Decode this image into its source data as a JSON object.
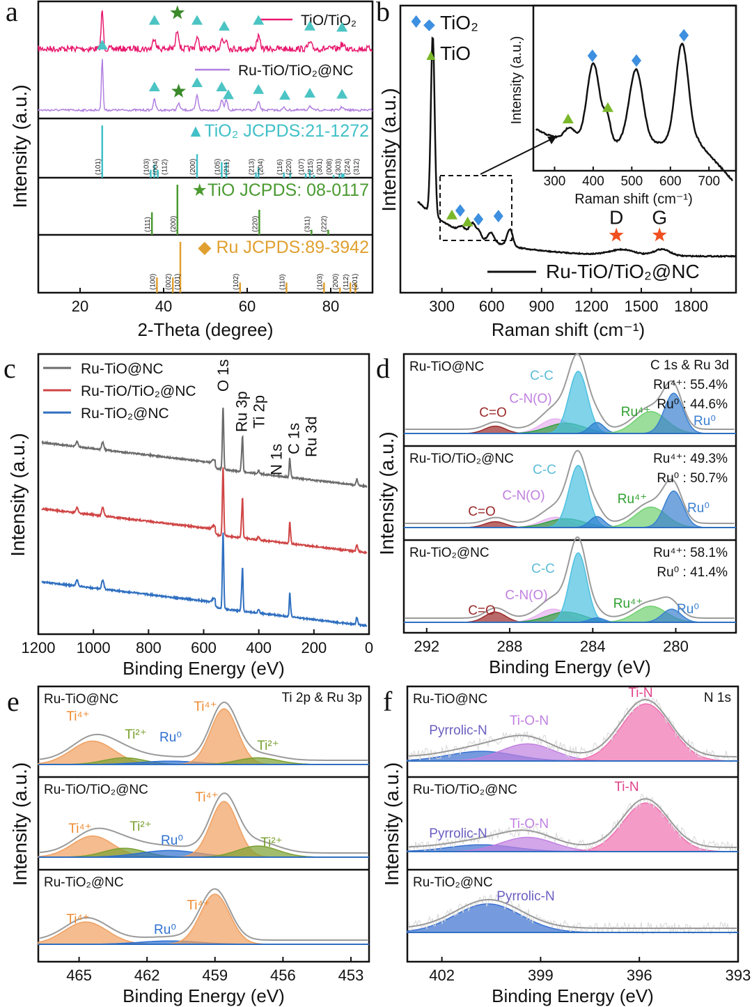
{
  "chart_data": [
    {
      "panel": "a",
      "type": "line",
      "xlabel": "2-Theta (degree)",
      "ylabel": "Intensity (a.u.)",
      "xlim": [
        10,
        90
      ],
      "xticks": [
        20,
        40,
        60,
        80
      ],
      "series": [
        {
          "name": "TiO/TiO₂",
          "color": "#e8196e",
          "peaks": [
            [
              25.3,
              1,
              0.25
            ],
            [
              37.8,
              0.3,
              0.35
            ],
            [
              43.3,
              0.5,
              0.35
            ],
            [
              48,
              0.3,
              0.35
            ],
            [
              53.9,
              0.25,
              0.35
            ],
            [
              55,
              0.25,
              0.35
            ],
            [
              62.7,
              0.3,
              0.4
            ],
            [
              75,
              0.15,
              0.4
            ],
            [
              82.7,
              0.12,
              0.4
            ]
          ],
          "markers": [
            [
              "triangle",
              25.3
            ],
            [
              "triangle",
              37.8
            ],
            [
              "star",
              43.3
            ],
            [
              "triangle",
              48
            ],
            [
              "triangle",
              54.5
            ],
            [
              "triangle",
              62.7
            ],
            [
              "triangle",
              75
            ],
            [
              "triangle",
              82.7
            ]
          ]
        },
        {
          "name": "Ru-TiO/TiO₂@NC",
          "color": "#b07fe0",
          "peaks": [
            [
              25.3,
              1,
              0.2
            ],
            [
              37.8,
              0.2,
              0.3
            ],
            [
              43.6,
              0.12,
              0.35
            ],
            [
              48,
              0.28,
              0.3
            ],
            [
              53.9,
              0.2,
              0.3
            ],
            [
              55,
              0.2,
              0.3
            ],
            [
              62.7,
              0.15,
              0.35
            ],
            [
              68.8,
              0.05,
              0.3
            ],
            [
              75,
              0.08,
              0.35
            ],
            [
              82.7,
              0.06,
              0.35
            ]
          ],
          "markers": [
            [
              "triangle",
              25.3
            ],
            [
              "triangle",
              37.8
            ],
            [
              "star",
              43.6
            ],
            [
              "triangle",
              48
            ],
            [
              "triangle",
              53.9
            ],
            [
              "triangle",
              55.5
            ],
            [
              "triangle",
              62.7
            ],
            [
              "triangle",
              69
            ],
            [
              "triangle",
              75
            ],
            [
              "triangle",
              82.7
            ]
          ]
        }
      ],
      "references": [
        {
          "label": "▲TiO₂ JCPDS:21-1272",
          "color": "#40c0c8",
          "lines": [
            [
              25.3,
              1,
              "(101)"
            ],
            [
              36.9,
              0.15,
              "(103)"
            ],
            [
              37.8,
              0.25,
              "(004)"
            ],
            [
              38.6,
              0.15,
              "(112)"
            ],
            [
              48,
              0.45,
              "(200)"
            ],
            [
              53.9,
              0.3,
              "(105)"
            ],
            [
              55,
              0.3,
              "(211)"
            ],
            [
              62.1,
              0.1,
              "(213)"
            ],
            [
              62.7,
              0.2,
              "(204)"
            ],
            [
              68.8,
              0.1,
              "(116)"
            ],
            [
              70.3,
              0.1,
              "(220)"
            ],
            [
              74,
              0.08,
              "(107)"
            ],
            [
              75,
              0.15,
              "(215)"
            ],
            [
              76,
              0.05,
              "(301)"
            ],
            [
              80.7,
              0.05,
              "(008)"
            ],
            [
              82.1,
              0.08,
              "(303)"
            ],
            [
              82.7,
              0.08,
              "(224)"
            ],
            [
              83.1,
              0.08,
              "(312)"
            ]
          ]
        },
        {
          "label": "★TiO JCPDS: 08-0117",
          "color": "#4a9a30",
          "lines": [
            [
              37.2,
              0.45,
              "(111)"
            ],
            [
              43.3,
              1,
              "(200)"
            ],
            [
              62.9,
              0.5,
              "(220)"
            ],
            [
              75.4,
              0.1,
              "(311)"
            ],
            [
              79.4,
              0.1,
              "(222)"
            ]
          ]
        },
        {
          "label": "◆ Ru JCPDS:89-3942",
          "color": "#e0a030",
          "lines": [
            [
              38.4,
              0.3,
              "(100)"
            ],
            [
              42.2,
              0.3,
              "(002)"
            ],
            [
              44,
              1,
              "(101)"
            ],
            [
              58.3,
              0.2,
              "(102)"
            ],
            [
              69.4,
              0.2,
              "(110)"
            ],
            [
              78.4,
              0.2,
              "(103)"
            ],
            [
              82.2,
              0.1,
              "(200)"
            ],
            [
              84.7,
              0.2,
              "(112)"
            ],
            [
              85.9,
              0.2,
              "(201)"
            ]
          ]
        }
      ]
    },
    {
      "panel": "b",
      "type": "line",
      "xlabel": "Raman shift (cm⁻¹)",
      "ylabel": "Intensity (a.u.)",
      "xlim": [
        50,
        2070
      ],
      "xticks": [
        300,
        600,
        900,
        1200,
        1500,
        1800
      ],
      "legend_markers": [
        {
          "symbol": "◆",
          "label": "TiO₂",
          "color": "#3d8fe0"
        },
        {
          "symbol": "▲",
          "label": "TiO",
          "color": "#7ab82a"
        }
      ],
      "series": [
        {
          "name": "Ru-TiO/TiO₂@NC",
          "color": "#111111",
          "peaks": [
            [
              145,
              0.95,
              12
            ],
            [
              330,
              0.03,
              20
            ],
            [
              400,
              0.07,
              22
            ],
            [
              440,
              0.03,
              12
            ],
            [
              515,
              0.05,
              20
            ],
            [
              635,
              0.09,
              18
            ],
            [
              1350,
              0.03,
              80
            ],
            [
              1600,
              0.035,
              50
            ]
          ]
        }
      ],
      "markers": [
        [
          "diamond",
          145
        ],
        [
          "triangle",
          360
        ],
        [
          "diamond",
          410
        ],
        [
          "triangle",
          455
        ],
        [
          "diamond",
          520
        ],
        [
          "diamond",
          640
        ],
        [
          "star",
          1350,
          "D"
        ],
        [
          "star",
          1610,
          "G"
        ]
      ],
      "inset": {
        "xlabel": "Raman shift (cm⁻¹)",
        "ylabel": "Intensity (a.u.)",
        "xlim": [
          245,
          770
        ],
        "xticks": [
          300,
          400,
          500,
          600,
          700
        ],
        "peaks": [
          [
            335,
            0.12,
            14
          ],
          [
            398,
            0.75,
            17
          ],
          [
            435,
            0.22,
            9
          ],
          [
            512,
            0.7,
            18
          ],
          [
            635,
            0.95,
            17
          ]
        ],
        "markers": [
          [
            "triangle",
            335
          ],
          [
            "diamond",
            398
          ],
          [
            "triangle",
            438
          ],
          [
            "diamond",
            512
          ],
          [
            "diamond",
            635
          ]
        ]
      }
    },
    {
      "panel": "c",
      "type": "line",
      "xlabel": "Binding Energy (eV)",
      "ylabel": "Intensity (a.u.)",
      "xlim": [
        1200,
        0
      ],
      "xticks": [
        1200,
        1000,
        800,
        600,
        400,
        200,
        0
      ],
      "series": [
        {
          "name": "Ru-TiO@NC",
          "color": "#6b6b6b"
        },
        {
          "name": "Ru-TiO/TiO₂@NC",
          "color": "#d04545"
        },
        {
          "name": "Ru-TiO₂@NC",
          "color": "#2f6fc0"
        }
      ],
      "peaks": [
        [
          1070,
          0.08,
          4
        ],
        [
          975,
          0.12,
          4
        ],
        [
          565,
          0.05,
          6
        ],
        [
          531,
          1,
          2.5
        ],
        [
          463,
          0.2,
          2
        ],
        [
          459,
          0.55,
          2
        ],
        [
          400,
          0.05,
          3
        ],
        [
          285,
          0.3,
          2
        ],
        [
          281,
          0.08,
          2
        ],
        [
          37,
          0.1,
          3
        ]
      ],
      "peak_labels": [
        [
          "O 1s",
          531
        ],
        [
          "Ru 3p",
          463
        ],
        [
          "Ti 2p",
          456
        ],
        [
          "N 1s",
          400
        ],
        [
          "C 1s",
          285
        ],
        [
          "Ru 3d",
          270
        ]
      ]
    },
    {
      "panel": "d",
      "type": "area",
      "xlabel": "Binding Energy (eV)",
      "ylabel": "Intensity (a.u.)",
      "xlim": [
        293.1,
        277.1
      ],
      "xticks": [
        292,
        288,
        284,
        280
      ],
      "annotation": "C 1s & Ru 3d",
      "subplots": [
        {
          "name": "Ru-TiO@NC",
          "info": [
            "Ru⁴⁺: 55.4%",
            "Ru⁰ : 44.6%"
          ],
          "components": [
            [
              "C=O",
              288.7,
              0.1,
              0.5,
              "#9b2a2a"
            ],
            [
              "C-N(O)",
              285.8,
              0.2,
              0.7,
              "#e6b0f0"
            ],
            [
              "",
              285.3,
              0.14,
              0.9,
              "#2fa040"
            ],
            [
              "C-C",
              284.7,
              0.85,
              0.45,
              "#4cc0e0"
            ],
            [
              "",
              283.8,
              0.15,
              0.35,
              "#2f7fd0"
            ],
            [
              "Ru⁴⁺",
              281.2,
              0.3,
              0.75,
              "#70d070"
            ],
            [
              "Ru⁰",
              280.1,
              0.55,
              0.45,
              "#3a80d0"
            ]
          ]
        },
        {
          "name": "Ru-TiO/TiO₂@NC",
          "info": [
            "Ru⁴⁺: 49.3%",
            "Ru⁰ : 50.7%"
          ],
          "components": [
            [
              "C=O",
              288.7,
              0.08,
              0.5,
              "#9b2a2a"
            ],
            [
              "C-N(O)",
              285.8,
              0.14,
              0.7,
              "#e6b0f0"
            ],
            [
              "",
              285.3,
              0.12,
              0.9,
              "#2fa040"
            ],
            [
              "C-C",
              284.7,
              0.85,
              0.45,
              "#4cc0e0"
            ],
            [
              "",
              283.8,
              0.15,
              0.35,
              "#2f7fd0"
            ],
            [
              "Ru⁴⁺",
              281.2,
              0.28,
              0.75,
              "#70d070"
            ],
            [
              "Ru⁰",
              280.1,
              0.5,
              0.45,
              "#3a80d0"
            ]
          ]
        },
        {
          "name": "Ru-TiO₂@NC",
          "info": [
            "Ru⁴⁺: 58.1%",
            "Ru⁰ : 41.4%"
          ],
          "components": [
            [
              "C=O",
              288.7,
              0.14,
              0.5,
              "#9b2a2a"
            ],
            [
              "C-N(O)",
              285.9,
              0.18,
              0.7,
              "#e6b0f0"
            ],
            [
              "",
              285.3,
              0.14,
              0.9,
              "#2fa040"
            ],
            [
              "C-C",
              284.7,
              0.95,
              0.42,
              "#4cc0e0"
            ],
            [
              "",
              283.8,
              0.06,
              0.35,
              "#2f7fd0"
            ],
            [
              "Ru⁴⁺",
              281.2,
              0.22,
              0.75,
              "#70d070"
            ],
            [
              "Ru⁰",
              280.2,
              0.18,
              0.45,
              "#3a80d0"
            ]
          ]
        }
      ]
    },
    {
      "panel": "e",
      "type": "area",
      "xlabel": "Binding Energy (eV)",
      "ylabel": "Intensity (a.u.)",
      "xlim": [
        466.8,
        452.2
      ],
      "xticks": [
        465,
        462,
        459,
        456,
        453
      ],
      "annotation": "Ti 2p & Ru 3p",
      "subplots": [
        {
          "name": "Ru-TiO@NC",
          "components": [
            [
              "Ti⁴⁺",
              464.4,
              0.42,
              0.95,
              "#f0a060"
            ],
            [
              "Ti²⁺",
              463,
              0.12,
              0.9,
              "#7aa030"
            ],
            [
              "Ru⁰",
              461,
              0.06,
              1.3,
              "#2f70d0"
            ],
            [
              "Ti⁴⁺",
              458.6,
              1,
              0.6,
              "#f0a060"
            ],
            [
              "Ti²⁺",
              457.1,
              0.12,
              0.9,
              "#7aa030"
            ]
          ]
        },
        {
          "name": "Ru-TiO/TiO₂@NC",
          "components": [
            [
              "Ti⁴⁺",
              464.4,
              0.38,
              0.9,
              "#f0a060"
            ],
            [
              "Ti²⁺",
              463,
              0.16,
              0.9,
              "#7aa030"
            ],
            [
              "Ru⁰",
              461,
              0.12,
              1.3,
              "#2f70d0"
            ],
            [
              "Ti⁴⁺",
              458.6,
              1,
              0.6,
              "#f0a060"
            ],
            [
              "Ti²⁺",
              457.1,
              0.2,
              0.9,
              "#7aa030"
            ]
          ]
        },
        {
          "name": "Ru-TiO₂@NC",
          "components": [
            [
              "Ti⁴⁺",
              464.7,
              0.4,
              0.95,
              "#f0a060"
            ],
            [
              "Ru⁰",
              461,
              0.06,
              1.3,
              "#2f70d0"
            ],
            [
              "Ti⁴⁺",
              459,
              0.9,
              0.65,
              "#f0a060"
            ]
          ]
        }
      ]
    },
    {
      "panel": "f",
      "type": "area",
      "xlabel": "Binding Energy (eV)",
      "ylabel": "Intensity (a.u.)",
      "xlim": [
        403.05,
        393
      ],
      "xticks": [
        402,
        399,
        396,
        393
      ],
      "annotation": "N 1s",
      "subplots": [
        {
          "name": "Ru-TiO@NC",
          "components": [
            [
              "Pyrrolic-N",
              400.8,
              0.17,
              1,
              "#3a70d0"
            ],
            [
              "Ti-O-N",
              399.4,
              0.3,
              0.8,
              "#c080e0"
            ],
            [
              "Ti-N",
              395.8,
              1,
              0.75,
              "#f070b0"
            ]
          ]
        },
        {
          "name": "Ru-TiO/TiO₂@NC",
          "components": [
            [
              "Pyrrolic-N",
              400.8,
              0.12,
              1,
              "#3a70d0"
            ],
            [
              "Ti-O-N",
              399.4,
              0.25,
              0.8,
              "#c080e0"
            ],
            [
              "Ti-N",
              395.8,
              0.85,
              0.7,
              "#f070b0"
            ]
          ]
        },
        {
          "name": "Ru-TiO₂@NC",
          "components": [
            [
              "Pyrrolic-N",
              400.6,
              0.5,
              1.0,
              "#3a70d0"
            ]
          ]
        }
      ]
    }
  ]
}
